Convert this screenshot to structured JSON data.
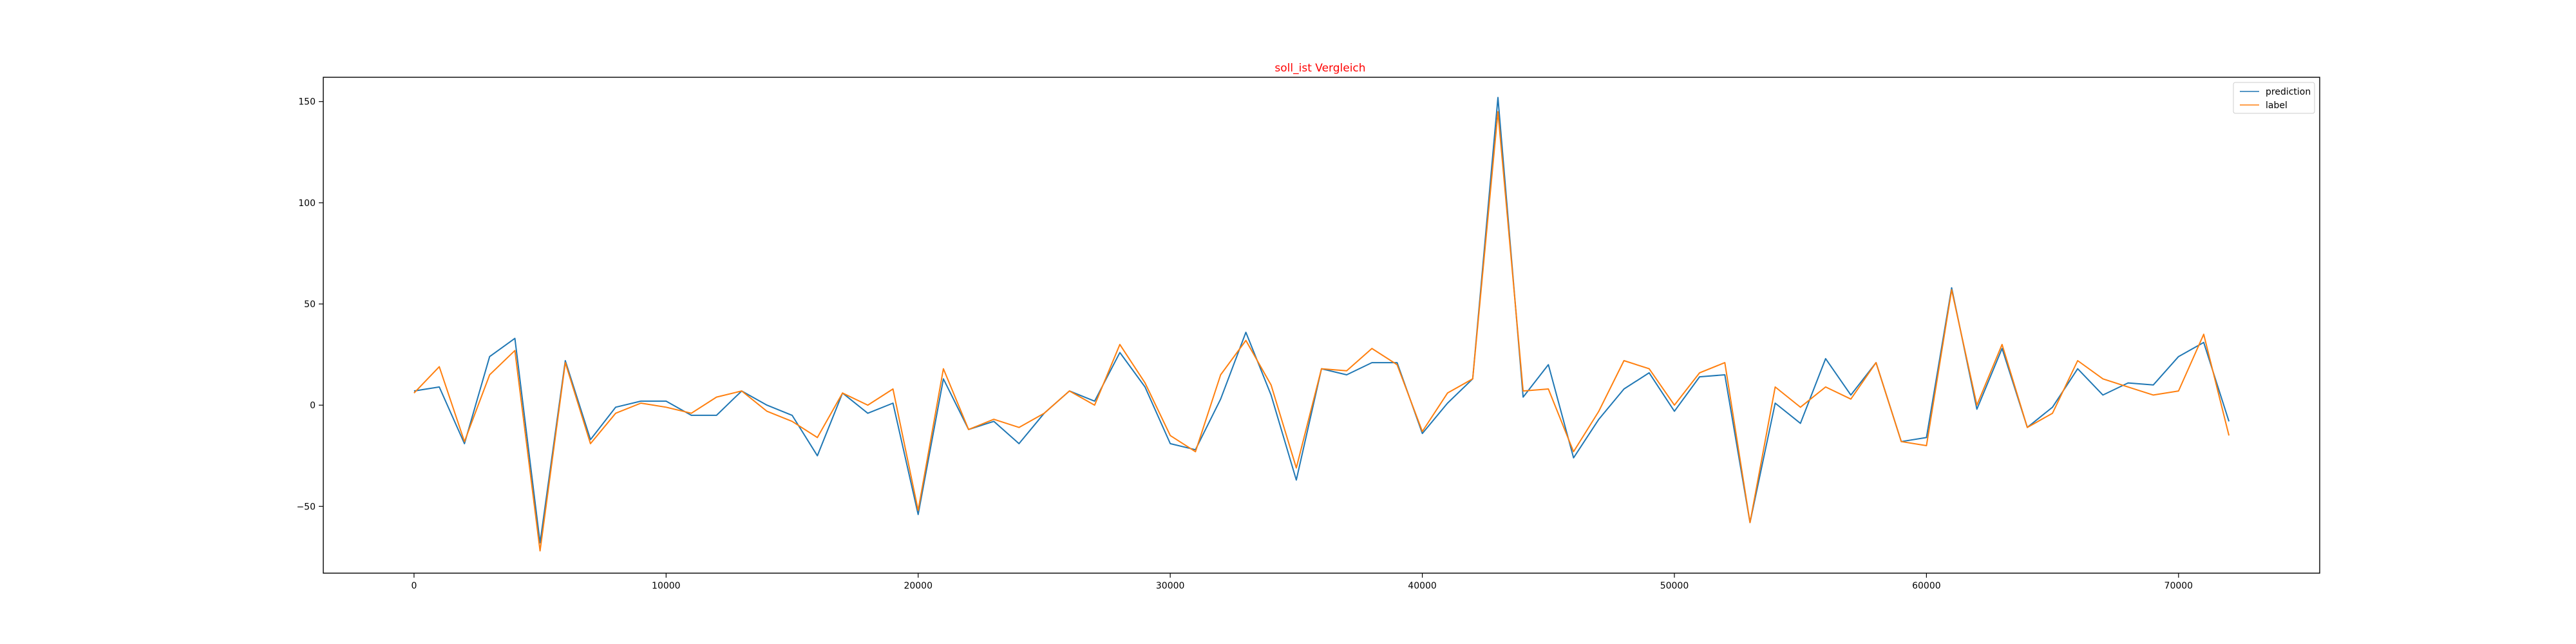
{
  "chart_data": {
    "type": "line",
    "title": "soll_ist Vergleich",
    "title_color": "#ff0000",
    "xlabel": "",
    "ylabel": "",
    "xlim": [
      -3600,
      75600
    ],
    "ylim": [
      -83,
      162
    ],
    "x_ticks": [
      0,
      10000,
      20000,
      30000,
      40000,
      50000,
      60000,
      70000
    ],
    "y_ticks": [
      -50,
      0,
      50,
      100,
      150
    ],
    "grid": false,
    "legend_position": "top-right",
    "x": [
      0,
      1000,
      2000,
      3000,
      4000,
      5000,
      6000,
      7000,
      8000,
      9000,
      10000,
      11000,
      12000,
      13000,
      14000,
      15000,
      16000,
      17000,
      18000,
      19000,
      20000,
      21000,
      22000,
      23000,
      24000,
      25000,
      26000,
      27000,
      28000,
      29000,
      30000,
      31000,
      32000,
      33000,
      34000,
      35000,
      36000,
      37000,
      38000,
      39000,
      40000,
      41000,
      42000,
      43000,
      44000,
      45000,
      46000,
      47000,
      48000,
      49000,
      50000,
      51000,
      52000,
      53000,
      54000,
      55000,
      56000,
      57000,
      58000,
      59000,
      60000,
      61000,
      62000,
      63000,
      64000,
      65000,
      66000,
      67000,
      68000,
      69000,
      70000,
      71000,
      72000
    ],
    "series": [
      {
        "name": "prediction",
        "color": "#1f77b4",
        "values": [
          7,
          9,
          -19,
          24,
          33,
          -68,
          22,
          -17,
          -1,
          2,
          2,
          -5,
          -5,
          7,
          0,
          -5,
          -25,
          6,
          -4,
          1,
          -54,
          13,
          -12,
          -8,
          -19,
          -4,
          7,
          2,
          26,
          9,
          -19,
          -22,
          3,
          36,
          5,
          -37,
          18,
          15,
          21,
          21,
          -14,
          1,
          13,
          152,
          4,
          20,
          -26,
          -7,
          8,
          16,
          -3,
          14,
          15,
          -58,
          1,
          -9,
          23,
          5,
          21,
          -18,
          -16,
          58,
          -2,
          28,
          -11,
          -1,
          18,
          5,
          11,
          10,
          24,
          31,
          -8
        ]
      },
      {
        "name": "label",
        "color": "#ff7f0e",
        "values": [
          6,
          19,
          -18,
          15,
          27,
          -72,
          21,
          -19,
          -4,
          1,
          -1,
          -4,
          4,
          7,
          -3,
          -8,
          -16,
          6,
          0,
          8,
          -52,
          18,
          -12,
          -7,
          -11,
          -4,
          7,
          0,
          30,
          11,
          -15,
          -23,
          15,
          32,
          10,
          -31,
          18,
          17,
          28,
          20,
          -13,
          6,
          13,
          145,
          7,
          8,
          -23,
          -3,
          22,
          18,
          0,
          16,
          21,
          -58,
          9,
          -1,
          9,
          3,
          21,
          -18,
          -20,
          57,
          0,
          30,
          -11,
          -4,
          22,
          13,
          9,
          5,
          7,
          35,
          -15
        ]
      }
    ]
  }
}
